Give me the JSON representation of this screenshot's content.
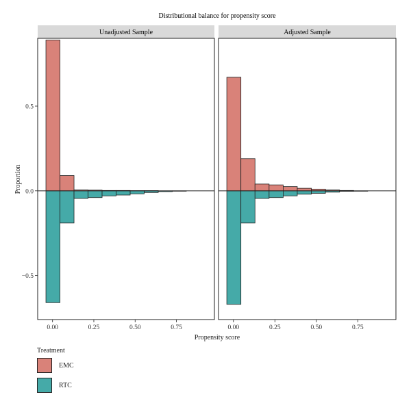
{
  "chart_data": {
    "type": "bar",
    "title": "Distributional balance for propensity score",
    "xlabel": "Propensity score",
    "ylabel": "Proportion",
    "xlim": [
      -0.09,
      0.98
    ],
    "ylim": [
      -0.76,
      0.9
    ],
    "x_ticks": [
      0.0,
      0.25,
      0.5,
      0.75
    ],
    "x_tick_labels": [
      "0.00",
      "0.25",
      "0.50",
      "0.75"
    ],
    "y_ticks": [
      0.5,
      0.0,
      -0.5
    ],
    "y_tick_labels": [
      "0.5",
      "0.0",
      "−0.5"
    ],
    "grid": false,
    "bin_width": 0.085,
    "bin_starts": [
      -0.04,
      0.045,
      0.13,
      0.215,
      0.3,
      0.385,
      0.47,
      0.555,
      0.64,
      0.725
    ],
    "panels": [
      {
        "name": "Unadjusted Sample",
        "series": [
          {
            "name": "EMC",
            "values": [
              0.89,
              0.09,
              0.005,
              0.004,
              0.002,
              0.002,
              0.001,
              0.001,
              0.0,
              0.0
            ]
          },
          {
            "name": "RTC",
            "values": [
              -0.66,
              -0.19,
              -0.045,
              -0.04,
              -0.03,
              -0.025,
              -0.018,
              -0.01,
              -0.005,
              -0.002
            ]
          }
        ]
      },
      {
        "name": "Adjusted Sample",
        "series": [
          {
            "name": "EMC",
            "values": [
              0.67,
              0.19,
              0.04,
              0.035,
              0.025,
              0.015,
              0.01,
              0.005,
              0.002,
              0.0
            ]
          },
          {
            "name": "RTC",
            "values": [
              -0.67,
              -0.19,
              -0.045,
              -0.04,
              -0.03,
              -0.02,
              -0.015,
              -0.008,
              -0.003,
              -0.001
            ]
          }
        ]
      }
    ],
    "legend": {
      "title": "Treatment",
      "position": "bottom-left"
    }
  },
  "colors": {
    "EMC": "#d98279",
    "RTC": "#45aaa8",
    "strip": "#d9d9d9",
    "outline": "#222222"
  }
}
